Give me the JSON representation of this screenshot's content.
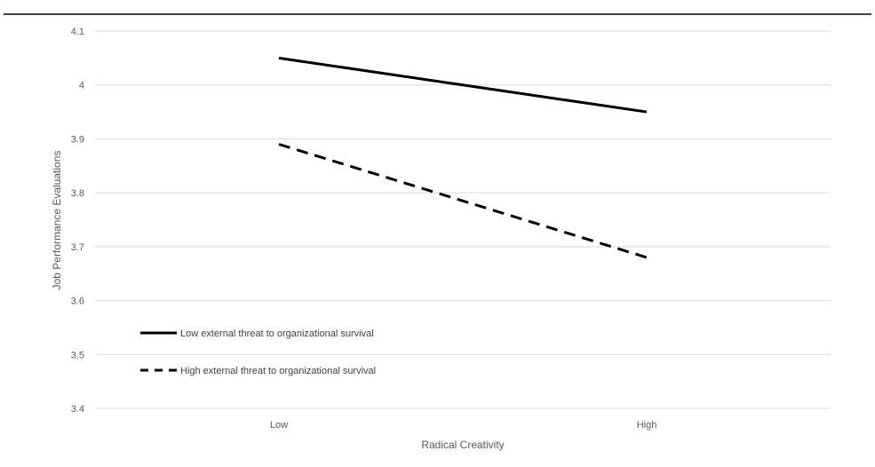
{
  "chart_data": {
    "type": "line",
    "title": "",
    "xlabel": "Radical Creativity",
    "ylabel": "Job Performance Evaluations",
    "categories": [
      "Low",
      "High"
    ],
    "ylim": [
      3.4,
      4.1
    ],
    "y_ticks": [
      "3.4",
      "3.5",
      "3.6",
      "3.7",
      "3.8",
      "3.9",
      "4",
      "4.1"
    ],
    "grid": true,
    "legend_position": "bottom-left inside",
    "series": [
      {
        "name": "Low external threat to organizational survival",
        "values": [
          4.05,
          3.95
        ],
        "style": "solid",
        "color": "#000000"
      },
      {
        "name": "High external threat to organizational survival",
        "values": [
          3.89,
          3.68
        ],
        "style": "dashed",
        "color": "#000000"
      }
    ]
  }
}
